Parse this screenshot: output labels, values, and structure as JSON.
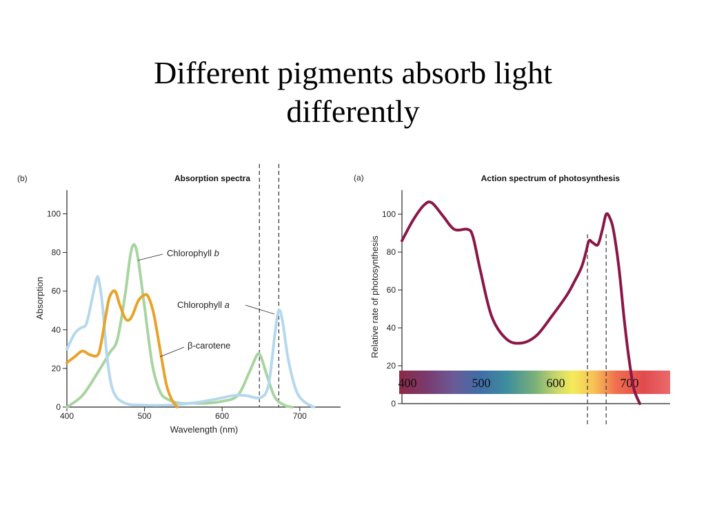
{
  "slide": {
    "title_line1": "Different pigments absorb light",
    "title_line2": "differently"
  },
  "chart_data": [
    {
      "type": "line",
      "panel_label": "(b)",
      "title": "Absorption spectra",
      "xlabel": "Wavelength (nm)",
      "ylabel": "Absorption",
      "xlim": [
        400,
        750
      ],
      "ylim": [
        0,
        110
      ],
      "xticks": [
        400,
        500,
        600,
        700
      ],
      "yticks": [
        0,
        20,
        40,
        60,
        80,
        100
      ],
      "grid": false,
      "reference_lines_x": [
        648,
        673
      ],
      "series": [
        {
          "name": "Chlorophyll b",
          "label_text": "Chlorophyll",
          "label_italic": "b",
          "color": "#a8d4a0",
          "x": [
            400,
            420,
            440,
            455,
            465,
            475,
            482,
            487,
            492,
            500,
            510,
            520,
            530,
            545,
            560,
            580,
            600,
            620,
            635,
            645,
            650,
            658,
            668,
            680,
            690
          ],
          "y": [
            0,
            6,
            18,
            28,
            35,
            58,
            79,
            84,
            76,
            52,
            22,
            8,
            4,
            2,
            2,
            2,
            3,
            6,
            18,
            27,
            26,
            16,
            5,
            1,
            0
          ]
        },
        {
          "name": "Chlorophyll a",
          "label_text": "Chlorophyll",
          "label_italic": "a",
          "color": "#b5d8ec",
          "x": [
            400,
            410,
            418,
            425,
            432,
            438,
            441,
            446,
            452,
            460,
            475,
            500,
            530,
            560,
            590,
            615,
            630,
            650,
            660,
            668,
            673,
            678,
            685,
            695,
            705,
            718
          ],
          "y": [
            30,
            38,
            41,
            43,
            55,
            66,
            66,
            52,
            25,
            8,
            2,
            1,
            1,
            2,
            4,
            6,
            6,
            5,
            12,
            38,
            50,
            44,
            25,
            9,
            3,
            0
          ]
        },
        {
          "name": "β-carotene",
          "label_text": "β-carotene",
          "color": "#e9a22a",
          "x": [
            400,
            410,
            420,
            430,
            440,
            445,
            450,
            455,
            462,
            468,
            475,
            480,
            485,
            492,
            500,
            505,
            512,
            520,
            528,
            535,
            542
          ],
          "y": [
            23,
            26,
            29,
            27,
            27,
            35,
            47,
            57,
            60,
            53,
            46,
            45,
            48,
            55,
            58,
            57,
            48,
            30,
            12,
            4,
            0
          ]
        }
      ]
    },
    {
      "type": "line",
      "panel_label": "(a)",
      "title": "Action spectrum of photosynthesis",
      "xlabel": "",
      "ylabel": "Relative rate of photosynthesis",
      "xlim": [
        400,
        750
      ],
      "ylim": [
        0,
        110
      ],
      "yticks": [
        0,
        20,
        40,
        60,
        80,
        100
      ],
      "grid": false,
      "reference_lines_x": [
        648,
        673
      ],
      "spectrum_band_labels": [
        "400",
        "500",
        "600",
        "700"
      ],
      "series": [
        {
          "color": "#8a1748",
          "x": [
            400,
            415,
            430,
            440,
            455,
            470,
            488,
            495,
            505,
            520,
            540,
            560,
            580,
            600,
            620,
            630,
            640,
            646,
            650,
            655,
            662,
            668,
            673,
            678,
            683,
            690,
            697,
            703,
            710,
            718
          ],
          "y": [
            86,
            97,
            105,
            106,
            99,
            92,
            92,
            88,
            70,
            46,
            34,
            32,
            36,
            46,
            57,
            64,
            72,
            80,
            86,
            85,
            84,
            92,
            100,
            98,
            91,
            72,
            45,
            25,
            8,
            0
          ]
        }
      ]
    }
  ]
}
